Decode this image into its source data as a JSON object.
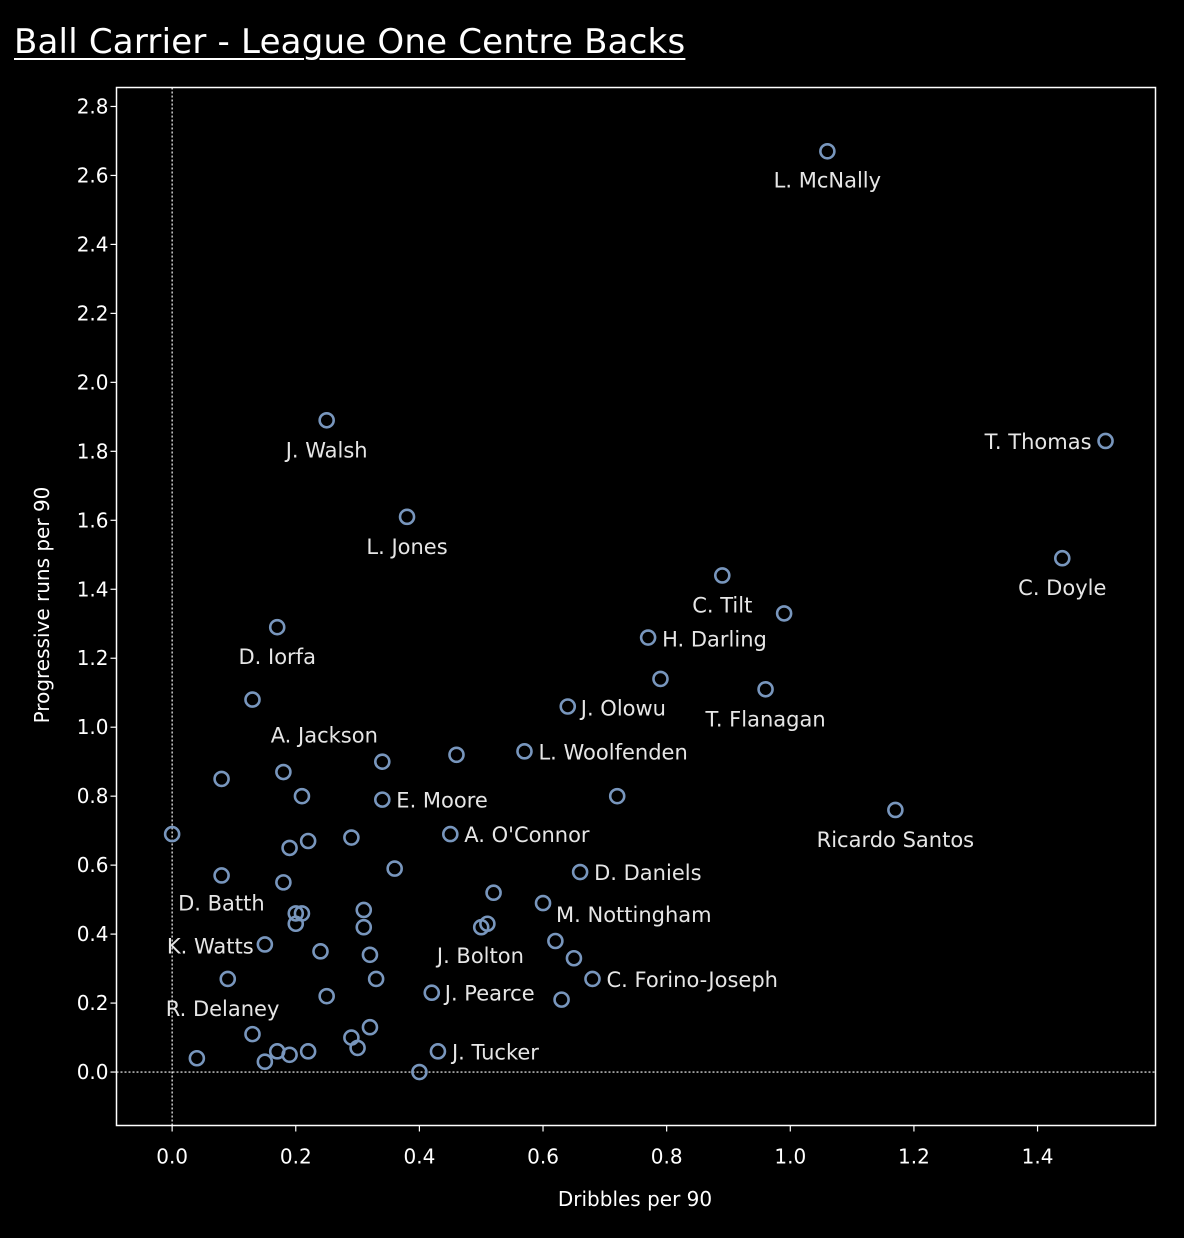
{
  "colors": {
    "background": "#000000",
    "marker": "#7896bd",
    "text": "#ffffff",
    "frame": "#ffffff"
  },
  "chart_data": {
    "type": "scatter",
    "title": "Ball Carrier - League One Centre Backs",
    "xlabel": "Dribbles per 90",
    "ylabel": "Progressive runs per 90",
    "xlim": [
      -0.09,
      1.5908
    ],
    "ylim": [
      -0.155,
      2.855
    ],
    "xticks": [
      "0.0",
      "0.2",
      "0.4",
      "0.6",
      "0.8",
      "1.0",
      "1.2",
      "1.4"
    ],
    "yticks": [
      "0.0",
      "0.2",
      "0.4",
      "0.6",
      "0.8",
      "1.0",
      "1.2",
      "1.4",
      "1.6",
      "1.8",
      "2.0",
      "2.2",
      "2.4",
      "2.6",
      "2.8"
    ],
    "reference_lines": {
      "x": 0.0,
      "y": 0.0,
      "style": "dotted"
    },
    "grid": false,
    "points": [
      {
        "x": 1.06,
        "y": 2.67,
        "label": "L. McNally"
      },
      {
        "x": 1.51,
        "y": 1.83,
        "label": "T. Thomas"
      },
      {
        "x": 0.25,
        "y": 1.89,
        "label": "J. Walsh"
      },
      {
        "x": 0.38,
        "y": 1.61,
        "label": "L. Jones"
      },
      {
        "x": 1.44,
        "y": 1.49,
        "label": "C. Doyle"
      },
      {
        "x": 0.89,
        "y": 1.44,
        "label": "C. Tilt"
      },
      {
        "x": 0.99,
        "y": 1.33,
        "label": ""
      },
      {
        "x": 0.17,
        "y": 1.29,
        "label": "D. Iorfa"
      },
      {
        "x": 0.77,
        "y": 1.26,
        "label": "H. Darling"
      },
      {
        "x": 0.79,
        "y": 1.14,
        "label": ""
      },
      {
        "x": 0.96,
        "y": 1.11,
        "label": "T. Flanagan"
      },
      {
        "x": 0.13,
        "y": 1.08,
        "label": ""
      },
      {
        "x": 0.64,
        "y": 1.06,
        "label": "J. Olowu"
      },
      {
        "x": 0.57,
        "y": 0.93,
        "label": "L. Woolfenden"
      },
      {
        "x": 0.46,
        "y": 0.92,
        "label": ""
      },
      {
        "x": 0.34,
        "y": 0.9,
        "label": "A. Jackson"
      },
      {
        "x": 0.18,
        "y": 0.87,
        "label": ""
      },
      {
        "x": 0.08,
        "y": 0.85,
        "label": ""
      },
      {
        "x": 0.34,
        "y": 0.79,
        "label": "E. Moore"
      },
      {
        "x": 0.21,
        "y": 0.8,
        "label": ""
      },
      {
        "x": 0.72,
        "y": 0.8,
        "label": ""
      },
      {
        "x": 1.17,
        "y": 0.76,
        "label": "Ricardo Santos"
      },
      {
        "x": 0.0,
        "y": 0.69,
        "label": ""
      },
      {
        "x": 0.45,
        "y": 0.69,
        "label": "A. O'Connor"
      },
      {
        "x": 0.29,
        "y": 0.68,
        "label": ""
      },
      {
        "x": 0.22,
        "y": 0.67,
        "label": ""
      },
      {
        "x": 0.19,
        "y": 0.65,
        "label": ""
      },
      {
        "x": 0.36,
        "y": 0.59,
        "label": ""
      },
      {
        "x": 0.66,
        "y": 0.58,
        "label": "D. Daniels"
      },
      {
        "x": 0.08,
        "y": 0.57,
        "label": ""
      },
      {
        "x": 0.18,
        "y": 0.55,
        "label": "D. Batth"
      },
      {
        "x": 0.52,
        "y": 0.52,
        "label": ""
      },
      {
        "x": 0.6,
        "y": 0.49,
        "label": "M. Nottingham"
      },
      {
        "x": 0.31,
        "y": 0.47,
        "label": ""
      },
      {
        "x": 0.2,
        "y": 0.46,
        "label": ""
      },
      {
        "x": 0.21,
        "y": 0.46,
        "label": ""
      },
      {
        "x": 0.2,
        "y": 0.43,
        "label": ""
      },
      {
        "x": 0.31,
        "y": 0.42,
        "label": ""
      },
      {
        "x": 0.51,
        "y": 0.43,
        "label": ""
      },
      {
        "x": 0.5,
        "y": 0.42,
        "label": ""
      },
      {
        "x": 0.62,
        "y": 0.38,
        "label": "J. Bolton"
      },
      {
        "x": 0.15,
        "y": 0.37,
        "label": "K. Watts"
      },
      {
        "x": 0.24,
        "y": 0.35,
        "label": ""
      },
      {
        "x": 0.32,
        "y": 0.34,
        "label": ""
      },
      {
        "x": 0.65,
        "y": 0.33,
        "label": ""
      },
      {
        "x": 0.09,
        "y": 0.27,
        "label": "R. Delaney"
      },
      {
        "x": 0.33,
        "y": 0.27,
        "label": ""
      },
      {
        "x": 0.68,
        "y": 0.27,
        "label": "C. Forino-Joseph"
      },
      {
        "x": 0.42,
        "y": 0.23,
        "label": "J. Pearce"
      },
      {
        "x": 0.25,
        "y": 0.22,
        "label": ""
      },
      {
        "x": 0.63,
        "y": 0.21,
        "label": ""
      },
      {
        "x": 0.32,
        "y": 0.13,
        "label": ""
      },
      {
        "x": 0.13,
        "y": 0.11,
        "label": ""
      },
      {
        "x": 0.29,
        "y": 0.1,
        "label": ""
      },
      {
        "x": 0.3,
        "y": 0.07,
        "label": ""
      },
      {
        "x": 0.43,
        "y": 0.06,
        "label": "J. Tucker"
      },
      {
        "x": 0.17,
        "y": 0.06,
        "label": ""
      },
      {
        "x": 0.22,
        "y": 0.06,
        "label": ""
      },
      {
        "x": 0.19,
        "y": 0.05,
        "label": ""
      },
      {
        "x": 0.04,
        "y": 0.04,
        "label": ""
      },
      {
        "x": 0.15,
        "y": 0.03,
        "label": ""
      },
      {
        "x": 0.4,
        "y": 0.0,
        "label": ""
      }
    ]
  }
}
